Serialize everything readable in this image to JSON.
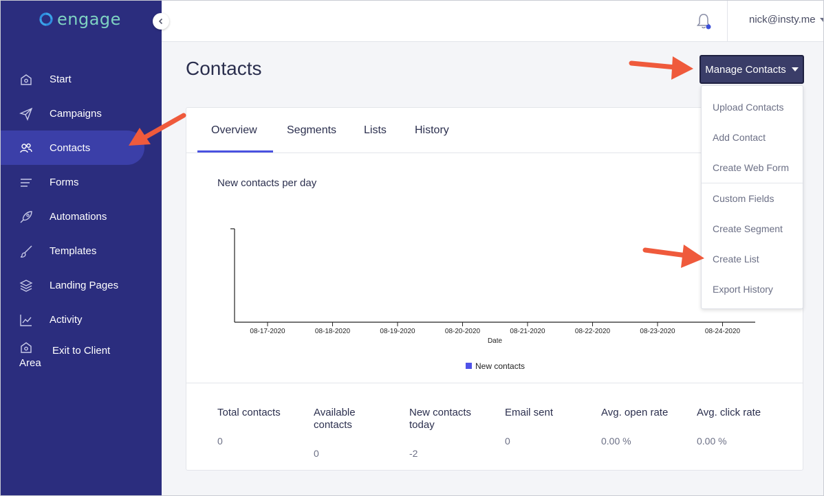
{
  "brand": {
    "name": "engage",
    "color": "#7ed2c2"
  },
  "sidebar": {
    "items": [
      {
        "label": "Start",
        "icon": "home-icon"
      },
      {
        "label": "Campaigns",
        "icon": "paper-plane-icon"
      },
      {
        "label": "Contacts",
        "icon": "users-icon",
        "active": true
      },
      {
        "label": "Forms",
        "icon": "list-lines-icon"
      },
      {
        "label": "Automations",
        "icon": "rocket-icon"
      },
      {
        "label": "Templates",
        "icon": "brush-icon"
      },
      {
        "label": "Landing Pages",
        "icon": "layers-icon"
      },
      {
        "label": "Activity",
        "icon": "line-chart-icon"
      }
    ],
    "exit": {
      "label_line1": "Exit to Client",
      "label_line2": "Area",
      "icon": "home-icon"
    }
  },
  "topbar": {
    "user_email": "nick@insty.me"
  },
  "page": {
    "title": "Contacts",
    "manage_button": "Manage Contacts"
  },
  "dropdown": {
    "items": [
      "Upload Contacts",
      "Add Contact",
      "Create Web Form",
      "Custom Fields",
      "Create Segment",
      "Create List",
      "Export History"
    ]
  },
  "tabs": [
    "Overview",
    "Segments",
    "Lists",
    "History"
  ],
  "chart_data": {
    "type": "bar",
    "title": "New contacts per day",
    "xlabel": "Date",
    "ylabel": "",
    "categories": [
      "08-17-2020",
      "08-18-2020",
      "08-19-2020",
      "08-20-2020",
      "08-21-2020",
      "08-22-2020",
      "08-23-2020",
      "08-24-2020"
    ],
    "series": [
      {
        "name": "New contacts",
        "values": [
          0,
          0,
          0,
          0,
          0,
          0,
          0,
          0
        ],
        "color": "#4f52e8"
      }
    ],
    "legend": "bottom-center",
    "grid": false
  },
  "stats": [
    {
      "label": "Total contacts",
      "value": "0"
    },
    {
      "label": "Available contacts",
      "value": "0"
    },
    {
      "label": "New contacts today",
      "value": "-2"
    },
    {
      "label": "Email sent",
      "value": "0"
    },
    {
      "label": "Avg. open rate",
      "value": "0.00 %"
    },
    {
      "label": "Avg. click rate",
      "value": "0.00 %"
    }
  ],
  "colors": {
    "sidebar": "#2b2d7e",
    "active": "#3b3fa8",
    "accent": "#4a52e0",
    "button": "#3a3d68",
    "arrow": "#ef5a3c"
  }
}
